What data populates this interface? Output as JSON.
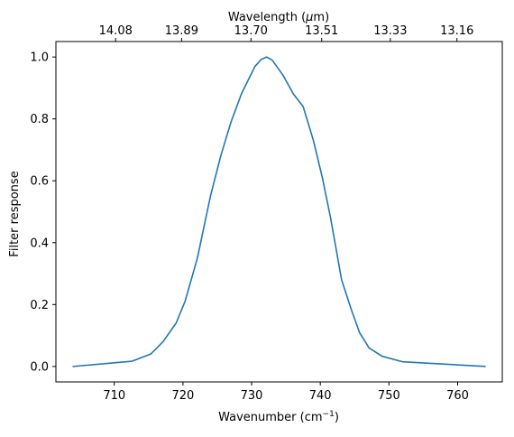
{
  "chart_data": {
    "type": "line",
    "title": "",
    "xlabel": "Wavenumber (cm",
    "xlabel_superscript": "−1",
    "xlabel_suffix": ")",
    "ylabel": "Filter response",
    "top_xlabel": "Wavelength (",
    "top_xlabel_symbol": "μ",
    "top_xlabel_suffix": "m)",
    "xlim": [
      701.5,
      766.5
    ],
    "ylim": [
      -0.05,
      1.05
    ],
    "grid": false,
    "legend": "none",
    "line_color": "#1f77b4",
    "x_ticks": [
      {
        "value": 710,
        "label": "710"
      },
      {
        "value": 720,
        "label": "720"
      },
      {
        "value": 730,
        "label": "730"
      },
      {
        "value": 740,
        "label": "740"
      },
      {
        "value": 750,
        "label": "750"
      },
      {
        "value": 760,
        "label": "760"
      }
    ],
    "y_ticks": [
      {
        "value": 0.0,
        "label": "0.0"
      },
      {
        "value": 0.2,
        "label": "0.2"
      },
      {
        "value": 0.4,
        "label": "0.4"
      },
      {
        "value": 0.6,
        "label": "0.6"
      },
      {
        "value": 0.8,
        "label": "0.8"
      },
      {
        "value": 1.0,
        "label": "1.0"
      }
    ],
    "top_ticks": [
      {
        "value": 710.2,
        "label": "14.08"
      },
      {
        "value": 719.8,
        "label": "13.89"
      },
      {
        "value": 729.9,
        "label": "13.70"
      },
      {
        "value": 740.2,
        "label": "13.51"
      },
      {
        "value": 750.2,
        "label": "13.33"
      },
      {
        "value": 759.9,
        "label": "13.16"
      }
    ],
    "series": [
      {
        "x": [
          704,
          712.6,
          715.3,
          717.1,
          719.0,
          720.3,
          722.1,
          724.0,
          725.5,
          727.0,
          728.5,
          729.6,
          730.5,
          731.4,
          732.2,
          733.0,
          734.6,
          736.1,
          737.5,
          739.0,
          740.3,
          741.5,
          742.3,
          743.1,
          744.5,
          745.7,
          747.1,
          749.0,
          752.0,
          764
        ],
        "y": [
          0.0,
          0.017,
          0.04,
          0.08,
          0.14,
          0.21,
          0.35,
          0.55,
          0.68,
          0.79,
          0.88,
          0.93,
          0.97,
          0.992,
          1.0,
          0.99,
          0.94,
          0.88,
          0.84,
          0.73,
          0.61,
          0.48,
          0.38,
          0.28,
          0.185,
          0.11,
          0.06,
          0.033,
          0.015,
          0.0
        ]
      }
    ]
  }
}
